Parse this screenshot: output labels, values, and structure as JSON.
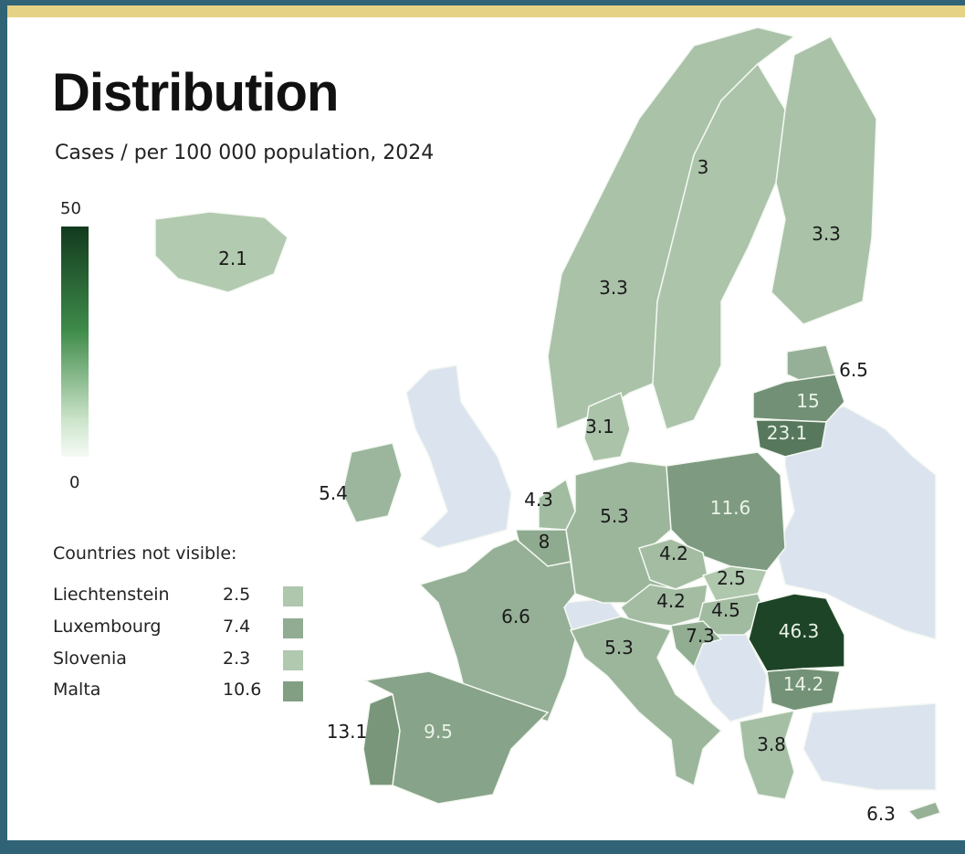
{
  "title": "Distribution",
  "subtitle": "Cases / per 100 000 population, 2024",
  "scale": {
    "max_label": "50",
    "min_label": "0",
    "min": 0,
    "max": 50
  },
  "not_visible": {
    "title": "Countries not visible:",
    "rows": [
      {
        "name": "Liechtenstein",
        "value": "2.5"
      },
      {
        "name": "Luxembourg",
        "value": "7.4"
      },
      {
        "name": "Slovenia",
        "value": "2.3"
      },
      {
        "name": "Malta",
        "value": "10.6"
      }
    ]
  },
  "countries": {
    "iceland": "2.1",
    "norway": "3.3",
    "sweden": "3",
    "finland": "3.3",
    "estonia": "6.5",
    "latvia": "15",
    "lithuania": "23.1",
    "denmark": "3.1",
    "ireland": "5.4",
    "netherlands": "4.3",
    "belgium": "8",
    "germany": "5.3",
    "poland": "11.6",
    "czechia": "4.2",
    "slovakia": "2.5",
    "austria": "4.2",
    "hungary": "4.5",
    "croatia": "7.3",
    "france": "6.6",
    "italy": "5.3",
    "romania": "46.3",
    "bulgaria": "14.2",
    "portugal": "13.1",
    "spain": "9.5",
    "greece": "3.8",
    "cyprus": "6.3"
  },
  "colors": {
    "no_data": "#dbe4ee",
    "low": "#d3e8cf",
    "high": "#163d20"
  }
}
